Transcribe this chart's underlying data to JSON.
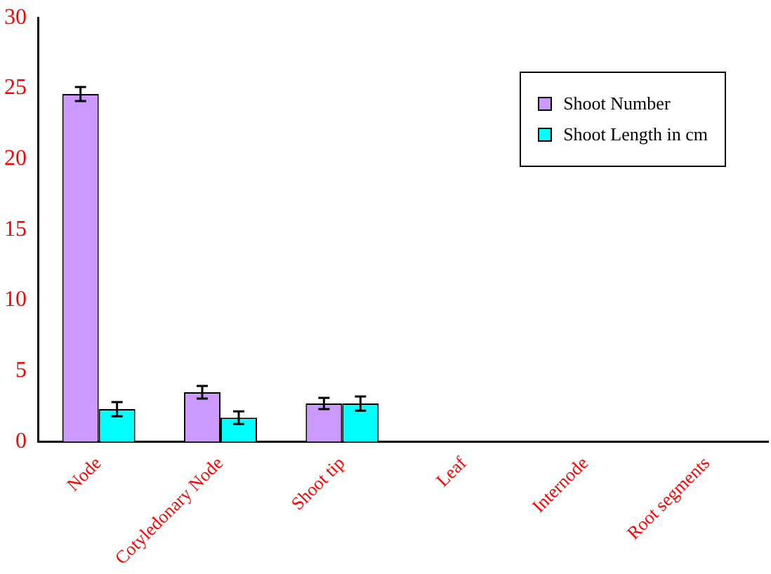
{
  "chart_data": {
    "type": "bar",
    "categories": [
      "Node",
      "Cotyledonary Node",
      "Shoot tip",
      "Leaf",
      "Internode",
      "Root segments"
    ],
    "series": [
      {
        "name": "Shoot Number",
        "color": "#cc99ff",
        "values": [
          24.6,
          3.5,
          2.7,
          0,
          0,
          0
        ],
        "errors": [
          0.5,
          0.45,
          0.4,
          null,
          null,
          null
        ]
      },
      {
        "name": "Shoot Length in cm",
        "color": "#00ffff",
        "values": [
          2.3,
          1.7,
          2.7,
          0,
          0,
          0
        ],
        "errors": [
          0.5,
          0.45,
          0.5,
          null,
          null,
          null
        ]
      }
    ],
    "ylim": [
      0,
      30
    ],
    "yticks": [
      0,
      5,
      10,
      15,
      20,
      25,
      30
    ],
    "grid": false,
    "legend": "top right"
  }
}
